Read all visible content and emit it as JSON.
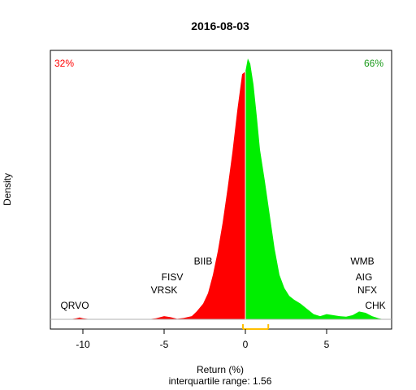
{
  "chart_data": {
    "type": "area",
    "title": "2016-08-03",
    "xlabel": "Return (%)",
    "subtitle": "interquartile range: 1.56",
    "ylabel": "Density",
    "xlim": [
      -12,
      9
    ],
    "x_ticks": [
      -10,
      -5,
      0,
      5
    ],
    "x_tick_labels": [
      "-10",
      "-5",
      "0",
      "5"
    ],
    "grid": false,
    "left_share_label": "32%",
    "right_share_label": "66%",
    "negative_color": "#ff0000",
    "positive_color": "#00ee00",
    "iqr_color": "#ffbf00",
    "iqr_range": [
      -0.15,
      1.41
    ],
    "density_x": [
      -10.8,
      -10.4,
      -10.2,
      -10.0,
      -9.6,
      -9.2,
      -6.0,
      -5.5,
      -5.0,
      -4.6,
      -4.2,
      -3.8,
      -3.3,
      -3.0,
      -2.6,
      -2.3,
      -2.0,
      -1.7,
      -1.4,
      -1.1,
      -0.8,
      -0.5,
      -0.2,
      0.0,
      0.15,
      0.3,
      0.5,
      0.7,
      0.9,
      1.2,
      1.5,
      1.8,
      2.1,
      2.4,
      2.7,
      3.0,
      3.4,
      3.8,
      4.2,
      4.6,
      5.0,
      5.4,
      5.8,
      6.2,
      6.6,
      7.0,
      7.4,
      7.8,
      8.2,
      8.5
    ],
    "density_y": [
      0,
      0.004,
      0.007,
      0.004,
      0.001,
      0,
      0,
      0.004,
      0.012,
      0.008,
      0.002,
      0.005,
      0.012,
      0.03,
      0.06,
      0.1,
      0.17,
      0.26,
      0.37,
      0.5,
      0.64,
      0.8,
      0.94,
      0.95,
      1.0,
      0.98,
      0.9,
      0.78,
      0.65,
      0.53,
      0.4,
      0.27,
      0.17,
      0.12,
      0.09,
      0.075,
      0.06,
      0.04,
      0.02,
      0.012,
      0.02,
      0.016,
      0.012,
      0.01,
      0.016,
      0.03,
      0.025,
      0.012,
      0.004,
      0
    ],
    "stock_labels": [
      {
        "text": "QRVO",
        "x": -10.5,
        "level": 0.04
      },
      {
        "text": "VRSK",
        "x": -5.0,
        "level": 0.1
      },
      {
        "text": "FISV",
        "x": -4.5,
        "level": 0.15
      },
      {
        "text": "BIIB",
        "x": -2.6,
        "level": 0.21
      },
      {
        "text": "WMB",
        "x": 7.2,
        "level": 0.21
      },
      {
        "text": "AIG",
        "x": 7.3,
        "level": 0.15
      },
      {
        "text": "NFX",
        "x": 7.5,
        "level": 0.1
      },
      {
        "text": "CHK",
        "x": 8.0,
        "level": 0.04
      }
    ]
  }
}
